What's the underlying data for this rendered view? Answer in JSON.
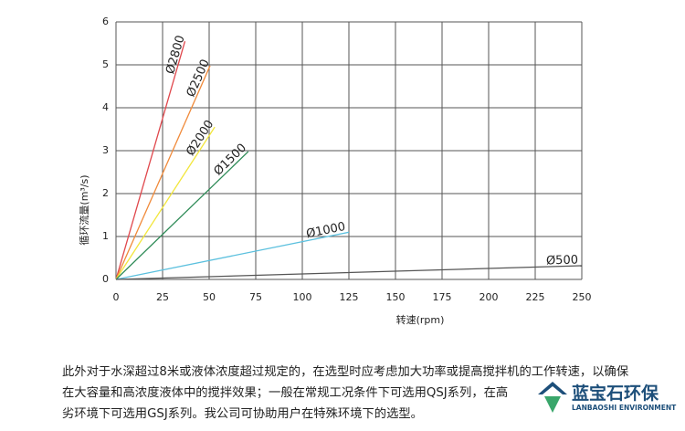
{
  "chart_data": {
    "type": "line",
    "x_label": "转速(rpm)",
    "y_label": "循环流量(m³/s)",
    "xlim": [
      0,
      250
    ],
    "xticks": [
      0,
      25,
      50,
      75,
      100,
      125,
      150,
      175,
      200,
      225,
      250
    ],
    "ylim": [
      0,
      6
    ],
    "yticks": [
      0,
      1,
      2,
      3,
      4,
      5,
      6
    ],
    "grid": true,
    "series": [
      {
        "name": "Ø2800",
        "color": "#e0474c",
        "x": [
          0,
          37
        ],
        "values": [
          0,
          5.55
        ]
      },
      {
        "name": "Ø2500",
        "color": "#f08a3a",
        "x": [
          0,
          50.5
        ],
        "values": [
          0,
          4.98
        ]
      },
      {
        "name": "Ø2000",
        "color": "#f2e63c",
        "x": [
          0,
          53
        ],
        "values": [
          0,
          3.55
        ]
      },
      {
        "name": "Ø1500",
        "color": "#2e8b57",
        "x": [
          0,
          71
        ],
        "values": [
          0,
          2.98
        ]
      },
      {
        "name": "Ø1000",
        "color": "#5bc0de",
        "x": [
          0,
          125
        ],
        "values": [
          0,
          1.1
        ]
      },
      {
        "name": "Ø500",
        "color": "#555555",
        "x": [
          0,
          250
        ],
        "values": [
          0,
          0.32
        ]
      }
    ]
  },
  "paragraph": [
    "此外对于水深超过8米或液体浓度超过规定的，在选型时应考虑加大功率或提高搅拌机的工作转速，以确保",
    "在大容量和高浓度液体中的搅拌效果；一般在常规工况条件下可选用QSJ系列，在高",
    "劣环境下可选用GSJ系列。我公司可协助用户在特殊环境下的选型。"
  ],
  "watermark": {
    "name": "蓝宝石环保",
    "subtitle": "LANBAOSHI ENVIRONMENT"
  }
}
